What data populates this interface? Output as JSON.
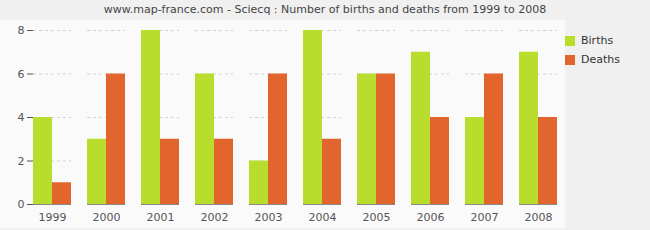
{
  "chart_data": {
    "type": "bar",
    "title": "www.map-france.com - Sciecq : Number of births and deaths from 1999 to 2008",
    "categories": [
      "1999",
      "2000",
      "2001",
      "2002",
      "2003",
      "2004",
      "2005",
      "2006",
      "2007",
      "2008"
    ],
    "series": [
      {
        "name": "Births",
        "color": "#b8dd2c",
        "values": [
          4,
          3,
          8,
          6,
          2,
          8,
          6,
          7,
          4,
          7
        ]
      },
      {
        "name": "Deaths",
        "color": "#e2652e",
        "values": [
          1,
          6,
          3,
          3,
          6,
          3,
          6,
          4,
          6,
          4
        ]
      }
    ],
    "ylim": [
      0,
      8
    ],
    "yticks": [
      0,
      2,
      4,
      6,
      8
    ],
    "grid": true,
    "legend": "right"
  }
}
